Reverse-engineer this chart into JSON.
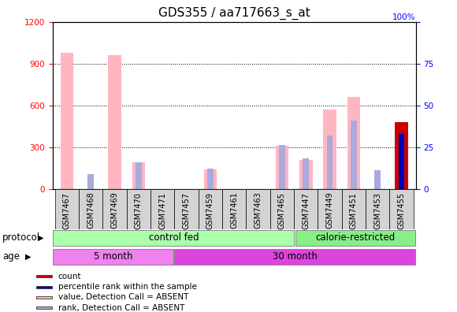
{
  "title": "GDS355 / aa717663_s_at",
  "samples": [
    "GSM7467",
    "GSM7468",
    "GSM7469",
    "GSM7470",
    "GSM7471",
    "GSM7457",
    "GSM7459",
    "GSM7461",
    "GSM7463",
    "GSM7465",
    "GSM7447",
    "GSM7449",
    "GSM7451",
    "GSM7453",
    "GSM7455"
  ],
  "value_absent": [
    980,
    0,
    960,
    190,
    0,
    0,
    140,
    0,
    0,
    310,
    210,
    570,
    660,
    0,
    0
  ],
  "rank_absent_pct": [
    0,
    9,
    0,
    16,
    0,
    0,
    12,
    0,
    0,
    26,
    18,
    32,
    41,
    11,
    0
  ],
  "count_val": [
    0,
    0,
    0,
    0,
    0,
    0,
    0,
    0,
    0,
    0,
    0,
    0,
    0,
    0,
    480
  ],
  "percentile_rank_pct": [
    0,
    0,
    0,
    0,
    0,
    0,
    0,
    0,
    0,
    0,
    0,
    0,
    0,
    0,
    33
  ],
  "ylim_left": [
    0,
    1200
  ],
  "ylim_right": [
    0,
    100
  ],
  "yticks_left": [
    0,
    300,
    600,
    900,
    1200
  ],
  "yticks_right": [
    0,
    25,
    50,
    75,
    100
  ],
  "color_value_absent": "#FFB6C1",
  "color_rank_absent": "#AAAADD",
  "color_count": "#CC0000",
  "color_percentile": "#0000BB",
  "legend_items": [
    {
      "label": "count",
      "color": "#CC0000"
    },
    {
      "label": "percentile rank within the sample",
      "color": "#0000BB"
    },
    {
      "label": "value, Detection Call = ABSENT",
      "color": "#FFB6C1"
    },
    {
      "label": "rank, Detection Call = ABSENT",
      "color": "#AAAADD"
    }
  ],
  "protocol_groups": [
    {
      "label": "control fed",
      "n_samples": 10,
      "color": "#AAFFAA"
    },
    {
      "label": "calorie-restricted",
      "n_samples": 5,
      "color": "#88EE88"
    }
  ],
  "age_groups": [
    {
      "label": "5 month",
      "n_samples": 5,
      "color": "#EE88EE"
    },
    {
      "label": "30 month",
      "n_samples": 10,
      "color": "#DD44DD"
    }
  ],
  "background_color": "#ffffff",
  "title_fontsize": 11,
  "tick_fontsize": 7.5,
  "label_fontsize": 8.5
}
